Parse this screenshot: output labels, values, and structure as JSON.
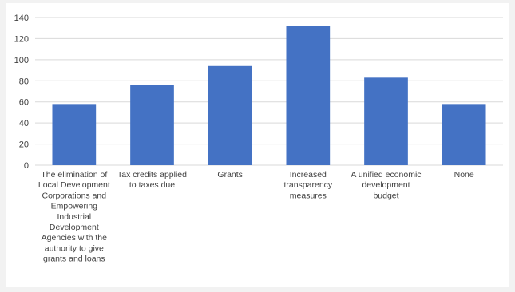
{
  "chart_data": {
    "type": "bar",
    "categories": [
      "The elimination of Local Development Corporations and Empowering Industrial Development Agencies with the authority to give grants and loans",
      "Tax credits applied to taxes due",
      "Grants",
      "Increased transparency measures",
      "A unified economic development budget",
      "None"
    ],
    "category_lines": [
      [
        "The elimination of",
        "Local Development",
        "Corporations and",
        "Empowering",
        "Industrial",
        "Development",
        "Agencies with the",
        "authority to give",
        "grants and loans"
      ],
      [
        "Tax credits applied",
        "to taxes due"
      ],
      [
        "Grants"
      ],
      [
        "Increased",
        "transparency",
        "measures"
      ],
      [
        "A unified economic",
        "development",
        "budget"
      ],
      [
        "None"
      ]
    ],
    "values": [
      58,
      76,
      94,
      132,
      83,
      58
    ],
    "ylim": [
      0,
      140
    ],
    "yticks": [
      0,
      20,
      40,
      60,
      80,
      100,
      120,
      140
    ],
    "grid": true,
    "bar_color": "#4472c4",
    "grid_color": "#d9d9d9",
    "title": "",
    "xlabel": "",
    "ylabel": ""
  }
}
